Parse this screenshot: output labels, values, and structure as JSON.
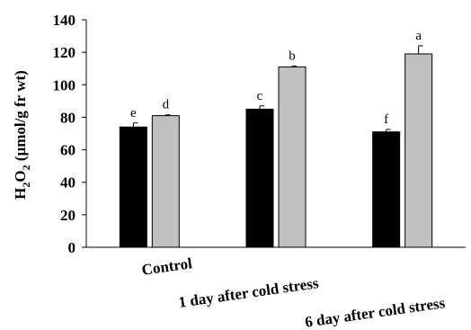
{
  "chart_data": {
    "type": "bar",
    "ylabel_main": "H",
    "ylabel_sub": "2",
    "ylabel_mid": "O",
    "ylabel_sub2": "2",
    "ylabel_rest": " (μmol/g fr wt)",
    "ylim": [
      0,
      140
    ],
    "yticks": [
      0,
      20,
      40,
      60,
      80,
      100,
      120,
      140
    ],
    "categories": [
      "Control",
      "1 day after cold stress",
      "6 day after cold stress"
    ],
    "series": [
      {
        "color": "#000000",
        "values": [
          74,
          85,
          71
        ],
        "errors": [
          2.5,
          2,
          1.5
        ],
        "letters": [
          "e",
          "c",
          "f"
        ]
      },
      {
        "color": "#c0c0c0",
        "values": [
          81,
          111,
          119
        ],
        "errors": [
          0.5,
          0.5,
          5
        ],
        "letters": [
          "d",
          "b",
          "a"
        ]
      }
    ],
    "grid": false,
    "legend": "none"
  }
}
